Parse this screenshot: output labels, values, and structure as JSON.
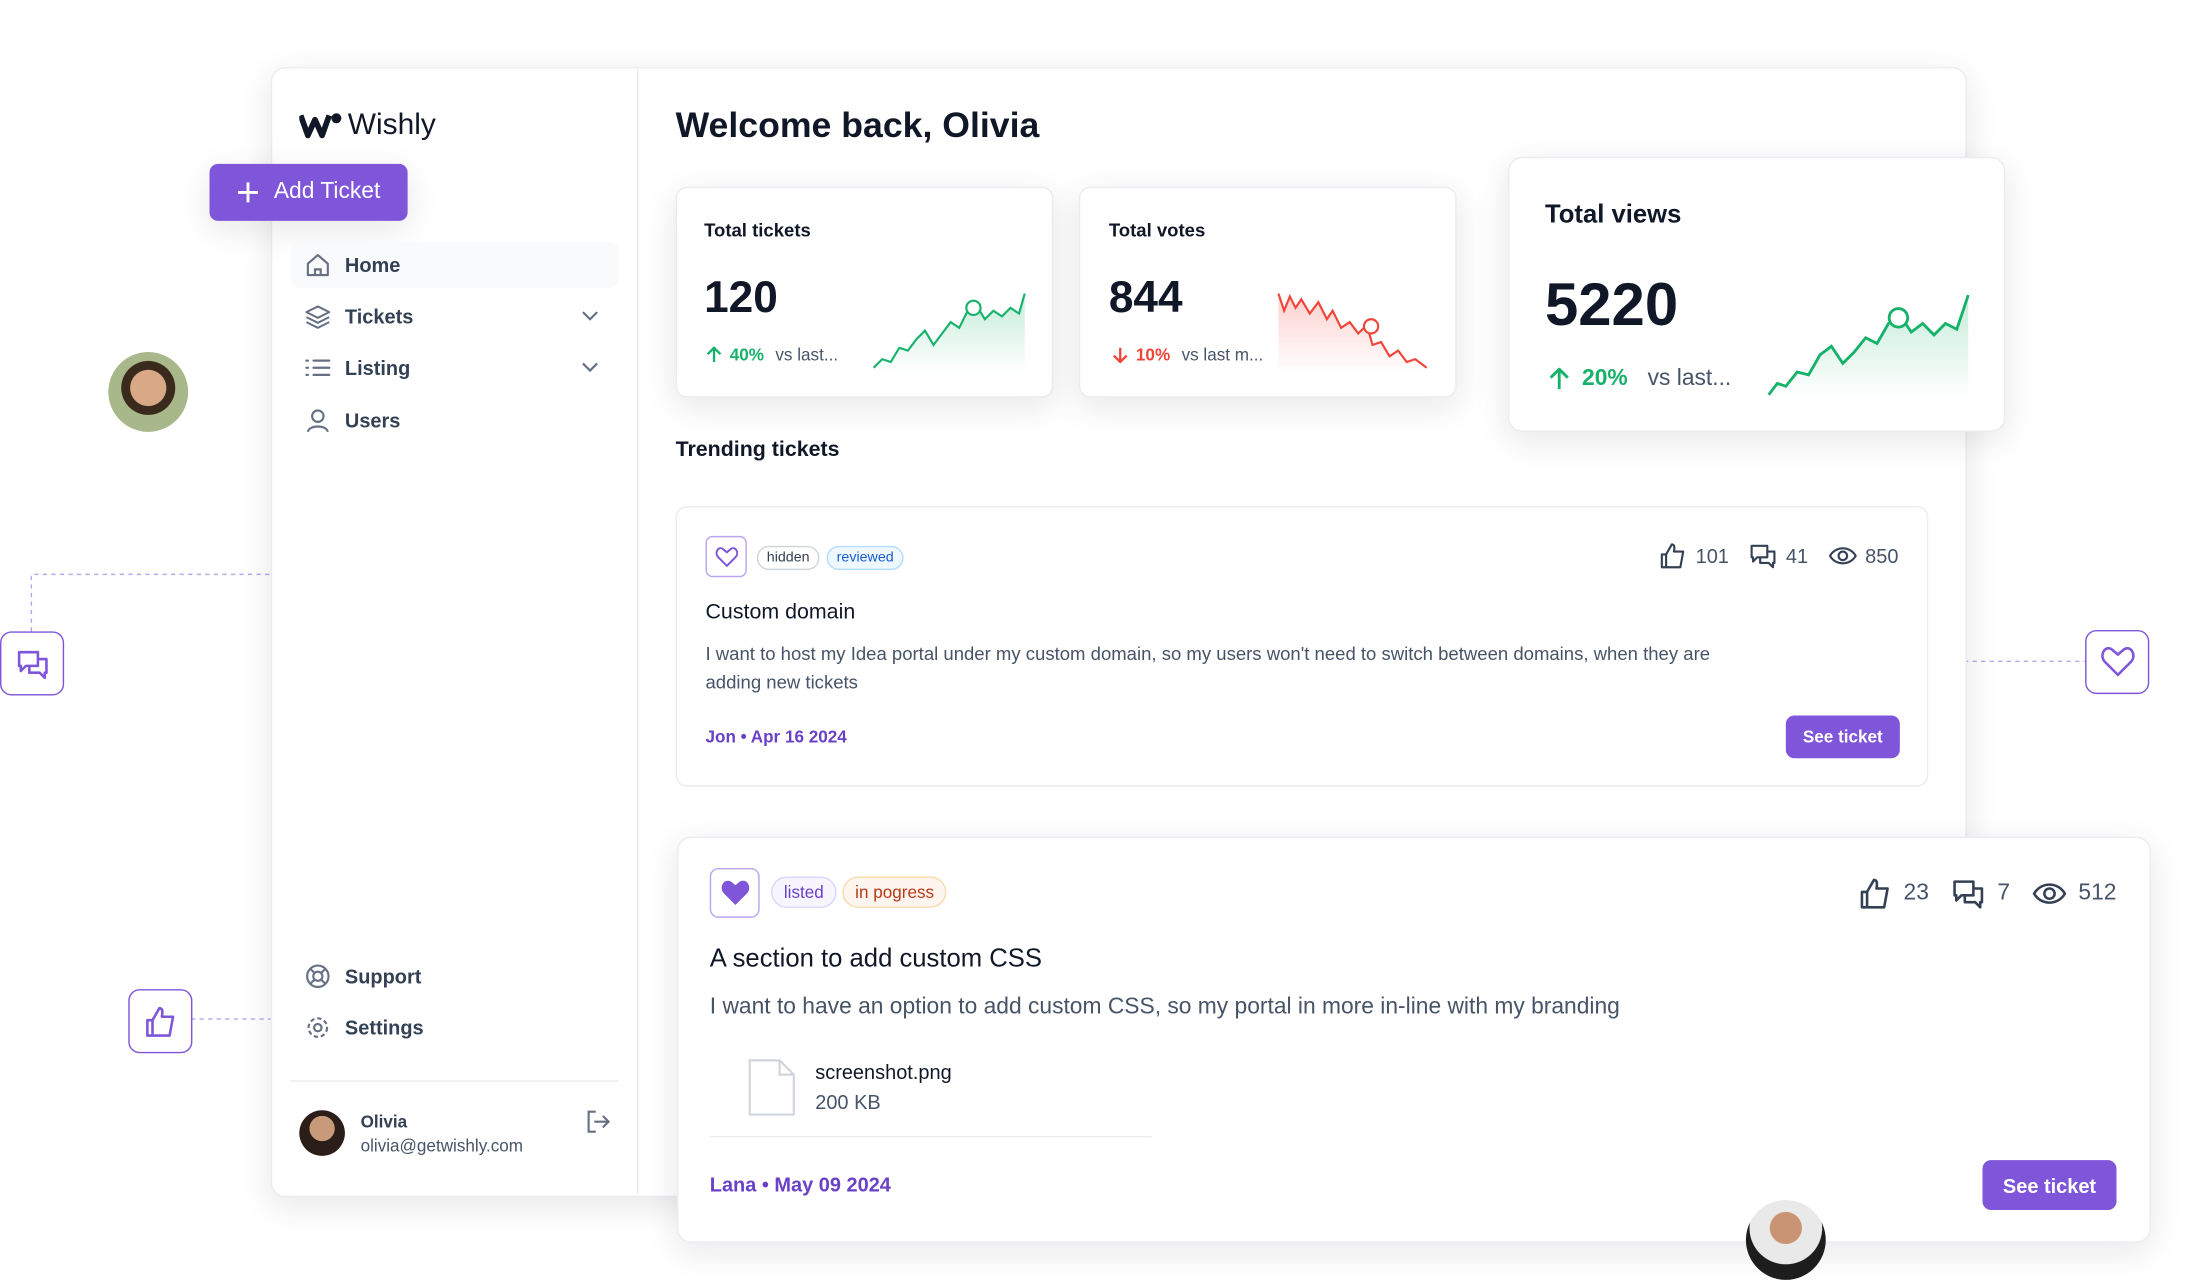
{
  "brand": "Wishly",
  "add_ticket": "Add Ticket",
  "nav": [
    "Home",
    "Tickets",
    "Listing",
    "Users"
  ],
  "bottom_nav": [
    "Support",
    "Settings"
  ],
  "user": {
    "name": "Olivia",
    "email": "olivia@getwishly.com"
  },
  "welcome": "Welcome back, Olivia",
  "stats": [
    {
      "label": "Total tickets",
      "value": 120,
      "change": "40%",
      "note": "vs last..."
    },
    {
      "label": "Total votes",
      "value": 844,
      "change": "10%",
      "note": "vs last m..."
    },
    {
      "label": "Total views",
      "value": 5220,
      "change": "20%",
      "note": "vs last..."
    }
  ],
  "trending_title": "Trending tickets",
  "tickets": [
    {
      "tags": [
        "hidden",
        "reviewed"
      ],
      "likes": 101,
      "comments": 41,
      "views": 850,
      "title": "Custom domain",
      "description": "I want to host my Idea portal under my custom domain, so my users won't need to switch between domains, when they are adding new tickets",
      "meta": "Jon • Apr 16 2024",
      "button": "See ticket"
    },
    {
      "tags": [
        "listed",
        "in pogress"
      ],
      "likes": 23,
      "comments": 7,
      "views": 512,
      "title": "A section to add custom CSS",
      "description": "I want to have an option to add custom CSS, so my portal in more in-line with my branding",
      "attachment": {
        "name": "screenshot.png",
        "size": "200 KB"
      },
      "meta": "Lana • May 09 2024",
      "button": "See ticket"
    }
  ]
}
